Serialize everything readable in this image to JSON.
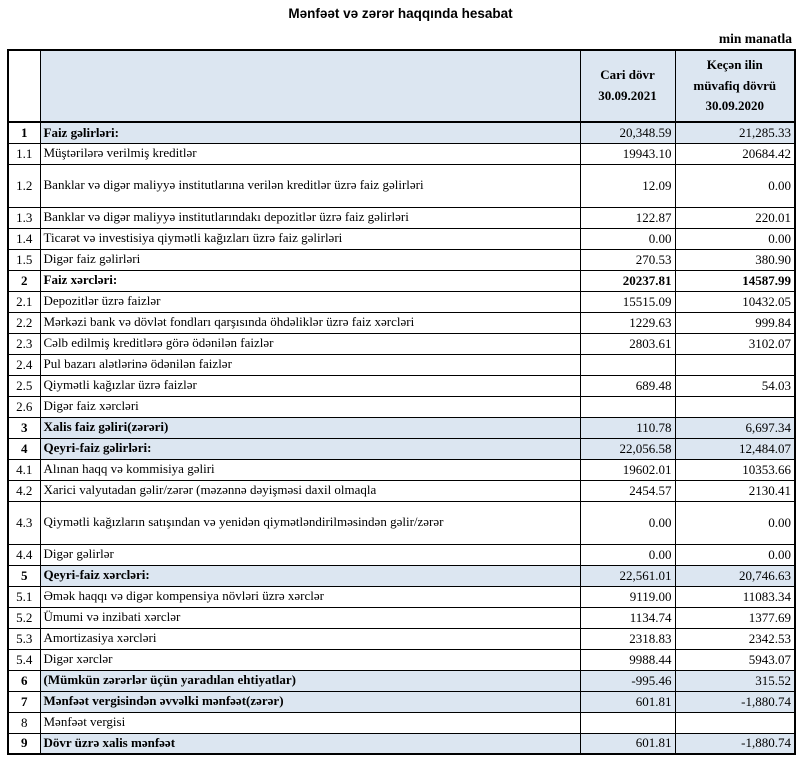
{
  "page": {
    "title": "Mənfəət və zərər haqqında hesabat",
    "unit_note": "min manatla"
  },
  "colors": {
    "highlight": "#dce6f1",
    "border": "#000000",
    "text": "#000000"
  },
  "table": {
    "columns": [
      {
        "label": "Cari dövr\n30.09.2021"
      },
      {
        "label": "Keçən ilin\nmüvafiq dövrü\n30.09.2020"
      }
    ],
    "rows": [
      {
        "no": "1",
        "label": "Faiz gəlirləri:",
        "current": "20,348.59",
        "previous": "21,285.33",
        "style": "summary"
      },
      {
        "no": "1.1",
        "label": "Müştərilərə verilmiş kreditlər",
        "current": "19943.10",
        "previous": "20684.42",
        "style": "detail"
      },
      {
        "no": "1.2",
        "label": "Banklar və digər maliyyə institutlarına verilən kreditlər üzrə faiz gəlirləri",
        "current": "12.09",
        "previous": "0.00",
        "style": "detail",
        "tall": true
      },
      {
        "no": "1.3",
        "label": "Banklar və digər maliyyə institutlarındakı depozitlər üzrə faiz gəlirləri",
        "current": "122.87",
        "previous": "220.01",
        "style": "detail"
      },
      {
        "no": "1.4",
        "label": "Ticarət və investisiya qiymətli kağızları üzrə faiz gəlirləri",
        "current": "0.00",
        "previous": "0.00",
        "style": "detail"
      },
      {
        "no": "1.5",
        "label": "Digər faiz gəlirləri",
        "current": "270.53",
        "previous": "380.90",
        "style": "detail"
      },
      {
        "no": "2",
        "label": "Faiz xərcləri:",
        "current": "20237.81",
        "previous": "14587.99",
        "style": "bold"
      },
      {
        "no": "2.1",
        "label": "Depozitlər üzrə faizlər",
        "current": "15515.09",
        "previous": "10432.05",
        "style": "detail"
      },
      {
        "no": "2.2",
        "label": "Mərkəzi bank və dövlət fondları qarşısında öhdəliklər üzrə faiz xərcləri",
        "current": "1229.63",
        "previous": "999.84",
        "style": "detail"
      },
      {
        "no": "2.3",
        "label": "Cəlb edilmiş kreditlərə görə ödənilən faizlər",
        "current": "2803.61",
        "previous": "3102.07",
        "style": "detail"
      },
      {
        "no": "2.4",
        "label": "Pul bazarı alətlərinə ödənilən faizlər",
        "current": "",
        "previous": "",
        "style": "detail"
      },
      {
        "no": "2.5",
        "label": "Qiymətli kağızlar üzrə faizlər",
        "current": "689.48",
        "previous": "54.03",
        "style": "detail"
      },
      {
        "no": "2.6",
        "label": "Digər faiz xərcləri",
        "current": "",
        "previous": "",
        "style": "detail"
      },
      {
        "no": "3",
        "label": "Xalis faiz gəliri(zərəri)",
        "current": "110.78",
        "previous": "6,697.34",
        "style": "summary"
      },
      {
        "no": "4",
        "label": "Qeyri-faiz gəlirləri:",
        "current": "22,056.58",
        "previous": "12,484.07",
        "style": "summary"
      },
      {
        "no": "4.1",
        "label": "Alınan haqq və kommisiya gəliri",
        "current": "19602.01",
        "previous": "10353.66",
        "style": "detail"
      },
      {
        "no": "4.2",
        "label": "Xarici valyutadan gəlir/zərər (məzənnə dəyişməsi daxil olmaqla",
        "current": "2454.57",
        "previous": "2130.41",
        "style": "detail"
      },
      {
        "no": "4.3",
        "label": "Qiymətli kağızların satışından və yenidən qiymətləndirilməsindən gəlir/zərər",
        "current": "0.00",
        "previous": "0.00",
        "style": "detail",
        "tall": true
      },
      {
        "no": "4.4",
        "label": "Digər gəlirlər",
        "current": "0.00",
        "previous": "0.00",
        "style": "detail"
      },
      {
        "no": "5",
        "label": "Qeyri-faiz xərcləri:",
        "current": "22,561.01",
        "previous": "20,746.63",
        "style": "summary"
      },
      {
        "no": "5.1",
        "label": "Əmək haqqı və digər kompensiya növləri üzrə xərclər",
        "current": "9119.00",
        "previous": "11083.34",
        "style": "detail"
      },
      {
        "no": "5.2",
        "label": "Ümumi və inzibati xərclər",
        "current": "1134.74",
        "previous": "1377.69",
        "style": "detail"
      },
      {
        "no": "5.3",
        "label": "Amortizasiya xərcləri",
        "current": "2318.83",
        "previous": "2342.53",
        "style": "detail"
      },
      {
        "no": "5.4",
        "label": "Digər xərclər",
        "current": "9988.44",
        "previous": "5943.07",
        "style": "detail"
      },
      {
        "no": "6",
        "label": "(Mümkün zərərlər üçün yaradılan ehtiyatlar)",
        "current": "-995.46",
        "previous": "315.52",
        "style": "summary"
      },
      {
        "no": "7",
        "label": "Mənfəət vergisindən əvvəlki mənfəət(zərər)",
        "current": "601.81",
        "previous": "-1,880.74",
        "style": "summary"
      },
      {
        "no": "8",
        "label": "Mənfəət vergisi",
        "current": "",
        "previous": "",
        "style": "detail"
      },
      {
        "no": "9",
        "label": "Dövr üzrə xalis mənfəət",
        "current": "601.81",
        "previous": "-1,880.74",
        "style": "summary"
      }
    ]
  }
}
